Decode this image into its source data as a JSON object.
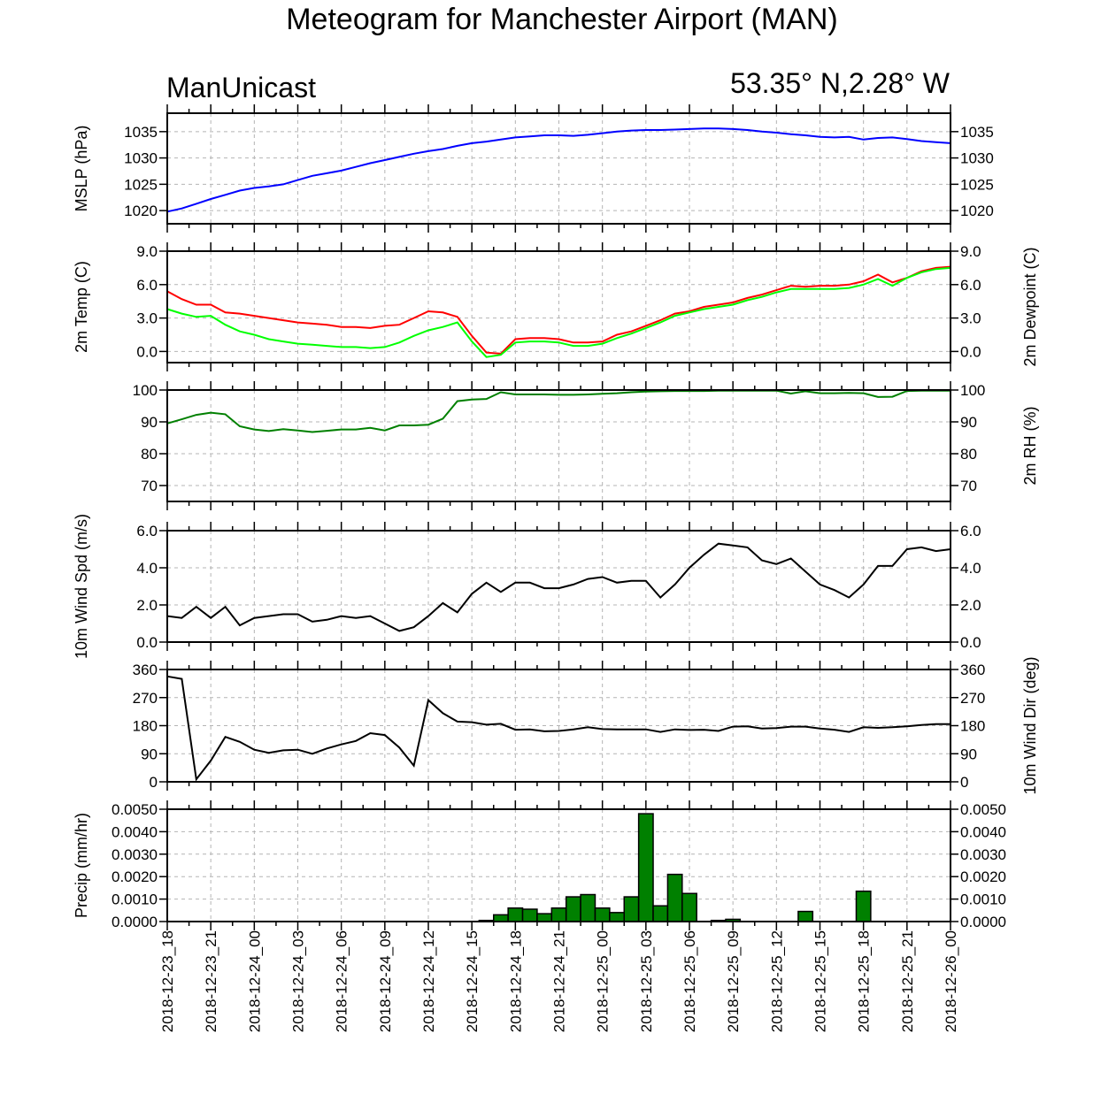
{
  "chart_data": {
    "type": "line",
    "title": "Meteogram for Manchester Airport (MAN)",
    "subtitle_left": "ManUnicast",
    "subtitle_right": "53.35° N,2.28° W",
    "grid": true,
    "x_tick_labels": [
      "2018-12-23_18",
      "2018-12-23_21",
      "2018-12-24_00",
      "2018-12-24_03",
      "2018-12-24_06",
      "2018-12-24_09",
      "2018-12-24_12",
      "2018-12-24_15",
      "2018-12-24_18",
      "2018-12-24_21",
      "2018-12-25_00",
      "2018-12-25_03",
      "2018-12-25_06",
      "2018-12-25_09",
      "2018-12-25_12",
      "2018-12-25_15",
      "2018-12-25_18",
      "2018-12-25_21",
      "2018-12-26_00"
    ],
    "x_hours_range": [
      0,
      54
    ],
    "panels": [
      {
        "type": "line",
        "left_label": "MSLP (hPa)",
        "right_label": "",
        "ylim": [
          1017.5,
          1038.5
        ],
        "yticks": [
          1020,
          1025,
          1030,
          1035
        ],
        "ytick_labels": [
          "1020",
          "1025",
          "1030",
          "1035"
        ],
        "series": [
          {
            "color": "#0000ff",
            "x_hours": [
              0,
              1,
              2,
              3,
              4,
              5,
              6,
              7,
              8,
              9,
              10,
              11,
              12,
              13,
              14,
              15,
              16,
              17,
              18,
              19,
              20,
              21,
              22,
              23,
              24,
              25,
              26,
              27,
              28,
              29,
              30,
              31,
              32,
              33,
              34,
              35,
              36,
              37,
              38,
              39,
              40,
              41,
              42,
              43,
              44,
              45,
              46,
              47,
              48,
              49,
              50,
              51,
              52,
              53,
              54
            ],
            "values": [
              1019.8,
              1020.4,
              1021.3,
              1022.2,
              1023.0,
              1023.8,
              1024.3,
              1024.6,
              1025.0,
              1025.8,
              1026.6,
              1027.1,
              1027.6,
              1028.3,
              1029.0,
              1029.6,
              1030.2,
              1030.8,
              1031.3,
              1031.7,
              1032.3,
              1032.8,
              1033.1,
              1033.5,
              1033.9,
              1034.1,
              1034.3,
              1034.3,
              1034.2,
              1034.4,
              1034.7,
              1035.0,
              1035.2,
              1035.3,
              1035.3,
              1035.4,
              1035.5,
              1035.6,
              1035.6,
              1035.5,
              1035.3,
              1035.0,
              1034.8,
              1034.5,
              1034.3,
              1034.0,
              1033.9,
              1034.0,
              1033.5,
              1033.8,
              1033.9,
              1033.6,
              1033.2,
              1033.0,
              1032.8
            ]
          }
        ]
      },
      {
        "type": "line",
        "left_label": "2m Temp (C)",
        "right_label": "2m Dewpoint (C)",
        "ylim": [
          -1.0,
          9.0
        ],
        "yticks": [
          0,
          3,
          6,
          9
        ],
        "ytick_labels": [
          "0.0",
          "3.0",
          "6.0",
          "9.0"
        ],
        "series": [
          {
            "color": "#ff0000",
            "x_hours": [
              0,
              1,
              2,
              3,
              4,
              5,
              6,
              7,
              8,
              9,
              10,
              11,
              12,
              13,
              14,
              15,
              16,
              17,
              18,
              19,
              20,
              21,
              22,
              23,
              24,
              25,
              26,
              27,
              28,
              29,
              30,
              31,
              32,
              33,
              34,
              35,
              36,
              37,
              38,
              39,
              40,
              41,
              42,
              43,
              44,
              45,
              46,
              47,
              48,
              49,
              50,
              51,
              52,
              53,
              54
            ],
            "values": [
              5.4,
              4.7,
              4.2,
              4.2,
              3.5,
              3.4,
              3.2,
              3.0,
              2.8,
              2.6,
              2.5,
              2.4,
              2.2,
              2.2,
              2.1,
              2.3,
              2.4,
              3.0,
              3.6,
              3.5,
              3.1,
              1.4,
              -0.1,
              -0.2,
              1.1,
              1.2,
              1.2,
              1.1,
              0.8,
              0.8,
              0.9,
              1.5,
              1.8,
              2.3,
              2.8,
              3.4,
              3.6,
              4.0,
              4.2,
              4.4,
              4.8,
              5.1,
              5.5,
              5.9,
              5.8,
              5.9,
              5.9,
              6.0,
              6.3,
              6.9,
              6.2,
              6.6,
              7.2,
              7.5,
              7.6
            ]
          },
          {
            "color": "#00ff00",
            "x_hours": [
              0,
              1,
              2,
              3,
              4,
              5,
              6,
              7,
              8,
              9,
              10,
              11,
              12,
              13,
              14,
              15,
              16,
              17,
              18,
              19,
              20,
              21,
              22,
              23,
              24,
              25,
              26,
              27,
              28,
              29,
              30,
              31,
              32,
              33,
              34,
              35,
              36,
              37,
              38,
              39,
              40,
              41,
              42,
              43,
              44,
              45,
              46,
              47,
              48,
              49,
              50,
              51,
              52,
              53,
              54
            ],
            "values": [
              3.8,
              3.4,
              3.1,
              3.2,
              2.4,
              1.8,
              1.5,
              1.1,
              0.9,
              0.7,
              0.6,
              0.5,
              0.4,
              0.4,
              0.3,
              0.4,
              0.8,
              1.4,
              1.9,
              2.2,
              2.6,
              0.9,
              -0.5,
              -0.3,
              0.8,
              0.9,
              0.9,
              0.8,
              0.5,
              0.5,
              0.7,
              1.2,
              1.6,
              2.1,
              2.6,
              3.2,
              3.5,
              3.8,
              4.0,
              4.2,
              4.6,
              4.9,
              5.3,
              5.6,
              5.6,
              5.6,
              5.6,
              5.7,
              6.0,
              6.5,
              5.9,
              6.6,
              7.1,
              7.4,
              7.5
            ]
          }
        ]
      },
      {
        "type": "line",
        "left_label": "",
        "right_label": "2m RH (%)",
        "ylim": [
          65,
          100
        ],
        "yticks": [
          70,
          80,
          90,
          100
        ],
        "ytick_labels": [
          "70",
          "80",
          "90",
          "100"
        ],
        "series": [
          {
            "color": "#008000",
            "x_hours": [
              0,
              1,
              2,
              3,
              4,
              5,
              6,
              7,
              8,
              9,
              10,
              11,
              12,
              13,
              14,
              15,
              16,
              17,
              18,
              19,
              20,
              21,
              22,
              23,
              24,
              25,
              26,
              27,
              28,
              29,
              30,
              31,
              32,
              33,
              34,
              35,
              36,
              37,
              38,
              39,
              40,
              41,
              42,
              43,
              44,
              45,
              46,
              47,
              48,
              49,
              50,
              51,
              52,
              53,
              54
            ],
            "values": [
              89.5,
              90.8,
              92.2,
              92.9,
              92.4,
              88.6,
              87.6,
              87.1,
              87.7,
              87.3,
              86.8,
              87.2,
              87.6,
              87.6,
              88.1,
              87.3,
              88.9,
              88.9,
              89.1,
              91.0,
              96.5,
              97.0,
              97.2,
              99.3,
              98.6,
              98.6,
              98.6,
              98.5,
              98.5,
              98.6,
              98.8,
              99.0,
              99.3,
              99.5,
              99.6,
              99.7,
              99.7,
              99.7,
              99.8,
              99.8,
              99.8,
              99.8,
              99.8,
              98.9,
              99.6,
              99.0,
              99.0,
              99.1,
              99.0,
              97.8,
              97.9,
              99.7,
              99.8,
              99.8,
              99.8
            ]
          }
        ]
      },
      {
        "type": "line",
        "left_label": "10m Wind Spd (m/s)",
        "right_label": "",
        "ylim": [
          0.0,
          6.0
        ],
        "yticks": [
          0,
          2,
          4,
          6
        ],
        "ytick_labels": [
          "0.0",
          "2.0",
          "4.0",
          "6.0"
        ],
        "series": [
          {
            "color": "#000000",
            "x_hours": [
              0,
              1,
              2,
              3,
              4,
              5,
              6,
              7,
              8,
              9,
              10,
              11,
              12,
              13,
              14,
              15,
              16,
              17,
              18,
              19,
              20,
              21,
              22,
              23,
              24,
              25,
              26,
              27,
              28,
              29,
              30,
              31,
              32,
              33,
              34,
              35,
              36,
              37,
              38,
              39,
              40,
              41,
              42,
              43,
              44,
              45,
              46,
              47,
              48,
              49,
              50,
              51,
              52,
              53,
              54
            ],
            "values": [
              1.4,
              1.3,
              1.9,
              1.3,
              1.9,
              0.9,
              1.3,
              1.4,
              1.5,
              1.5,
              1.1,
              1.2,
              1.4,
              1.3,
              1.4,
              1.0,
              0.6,
              0.8,
              1.4,
              2.1,
              1.6,
              2.6,
              3.2,
              2.7,
              3.2,
              3.2,
              2.9,
              2.9,
              3.1,
              3.4,
              3.5,
              3.2,
              3.3,
              3.3,
              2.4,
              3.1,
              4.0,
              4.7,
              5.3,
              5.2,
              5.1,
              4.4,
              4.2,
              4.5,
              3.8,
              3.1,
              2.8,
              2.4,
              3.1,
              4.1,
              4.1,
              5.0,
              5.1,
              4.9,
              5.0
            ]
          }
        ]
      },
      {
        "type": "line",
        "left_label": "",
        "right_label": "10m Wind Dir (deg)",
        "ylim": [
          0,
          360
        ],
        "yticks": [
          0,
          90,
          180,
          270,
          360
        ],
        "ytick_labels": [
          "0",
          "90",
          "180",
          "270",
          "360"
        ],
        "series": [
          {
            "color": "#000000",
            "x_hours": [
              0,
              1,
              2,
              3,
              4,
              5,
              6,
              7,
              8,
              9,
              10,
              11,
              12,
              13,
              14,
              15,
              16,
              17,
              18,
              19,
              20,
              21,
              22,
              23,
              24,
              25,
              26,
              27,
              28,
              29,
              30,
              31,
              32,
              33,
              34,
              35,
              36,
              37,
              38,
              39,
              40,
              41,
              42,
              43,
              44,
              45,
              46,
              47,
              48,
              49,
              50,
              51,
              52,
              53,
              54
            ],
            "values": [
              338,
              330,
              8,
              68,
              144,
              128,
              103,
              93,
              101,
              103,
              90,
              107,
              120,
              131,
              156,
              150,
              110,
              52,
              262,
              220,
              193,
              191,
              183,
              186,
              167,
              168,
              162,
              163,
              168,
              175,
              169,
              168,
              168,
              168,
              160,
              168,
              166,
              167,
              163,
              177,
              178,
              171,
              172,
              177,
              177,
              171,
              167,
              160,
              175,
              173,
              175,
              178,
              182,
              185,
              185
            ]
          }
        ]
      },
      {
        "type": "bar",
        "left_label": "Precip (mm/hr)",
        "right_label": "",
        "ylim": [
          0.0,
          0.005
        ],
        "yticks": [
          0,
          0.001,
          0.002,
          0.003,
          0.004,
          0.005
        ],
        "ytick_labels": [
          "0.0000",
          "0.0010",
          "0.0020",
          "0.0030",
          "0.0040",
          "0.0050"
        ],
        "bar_color": "#008000",
        "x_hours": [
          22,
          23,
          24,
          25,
          26,
          27,
          28,
          29,
          30,
          31,
          32,
          33,
          34,
          35,
          36,
          37,
          38,
          39,
          40,
          41,
          42,
          43,
          44,
          45,
          46,
          47,
          48,
          49,
          50,
          51,
          52,
          53
        ],
        "values": [
          5e-05,
          0.0003,
          0.0006,
          0.00055,
          0.00035,
          0.0006,
          0.0011,
          0.0012,
          0.0006,
          0.0004,
          0.0011,
          0.0048,
          0.0007,
          0.0021,
          0.00125,
          0.0,
          5e-05,
          0.0001,
          0.0,
          0.0,
          0.0,
          0.0,
          0.00045,
          0.0,
          0.0,
          0.0,
          0.00135,
          0.0,
          0.0,
          0.0,
          0.0,
          0.0
        ]
      }
    ]
  }
}
